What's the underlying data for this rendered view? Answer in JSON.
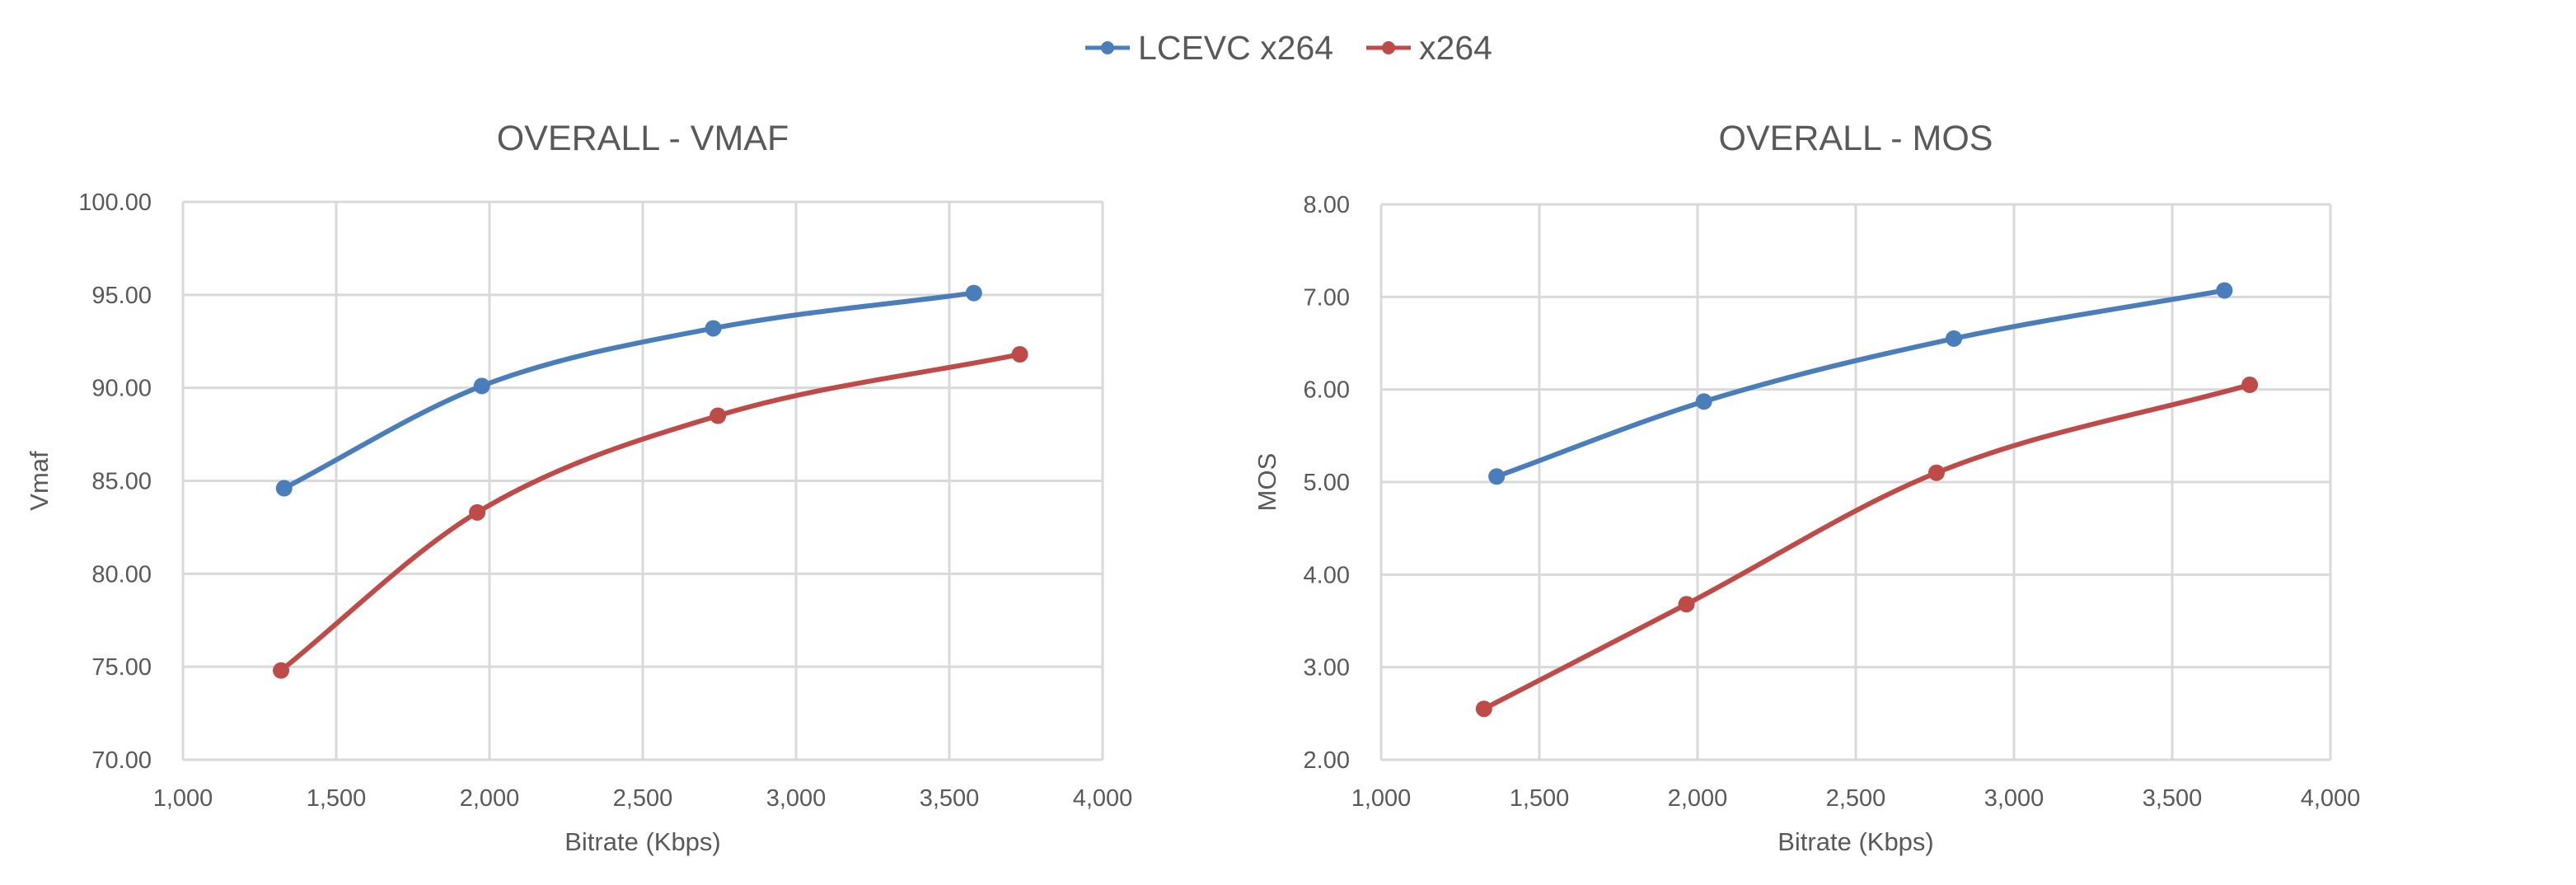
{
  "legend": [
    {
      "name": "LCEVC x264",
      "color": "#4a7ebb"
    },
    {
      "name": "x264",
      "color": "#be4b48"
    }
  ],
  "chart_data": [
    {
      "type": "line",
      "title": "OVERALL - VMAF",
      "xlabel": "Bitrate (Kbps)",
      "ylabel": "Vmaf",
      "xlim": [
        1000,
        4000
      ],
      "ylim": [
        70,
        100
      ],
      "xticks": [
        1000,
        1500,
        2000,
        2500,
        3000,
        3500,
        4000
      ],
      "xtick_labels": [
        "1,000",
        "1,500",
        "2,000",
        "2,500",
        "3,000",
        "3,500",
        "4,000"
      ],
      "yticks": [
        70,
        75,
        80,
        85,
        90,
        95,
        100
      ],
      "ytick_labels": [
        "70.00",
        "75.00",
        "80.00",
        "85.00",
        "90.00",
        "95.00",
        "100.00"
      ],
      "grid": true,
      "legend_position": "top",
      "series": [
        {
          "name": "LCEVC x264",
          "color": "#4a7ebb",
          "points": [
            [
              1330,
              84.6
            ],
            [
              1975,
              90.1
            ],
            [
              2730,
              93.2
            ],
            [
              3580,
              95.1
            ]
          ]
        },
        {
          "name": "x264",
          "color": "#be4b48",
          "points": [
            [
              1320,
              74.8
            ],
            [
              1960,
              83.3
            ],
            [
              2745,
              88.5
            ],
            [
              3730,
              91.8
            ]
          ]
        }
      ]
    },
    {
      "type": "line",
      "title": "OVERALL - MOS",
      "xlabel": "Bitrate (Kbps)",
      "ylabel": "MOS",
      "xlim": [
        1000,
        4000
      ],
      "ylim": [
        2,
        8
      ],
      "xticks": [
        1000,
        1500,
        2000,
        2500,
        3000,
        3500,
        4000
      ],
      "xtick_labels": [
        "1,000",
        "1,500",
        "2,000",
        "2,500",
        "3,000",
        "3,500",
        "4,000"
      ],
      "yticks": [
        2,
        3,
        4,
        5,
        6,
        7,
        8
      ],
      "ytick_labels": [
        "2.00",
        "3.00",
        "4.00",
        "5.00",
        "6.00",
        "7.00",
        "8.00"
      ],
      "grid": true,
      "legend_position": "top",
      "series": [
        {
          "name": "LCEVC x264",
          "color": "#4a7ebb",
          "points": [
            [
              1365,
              5.06
            ],
            [
              2020,
              5.87
            ],
            [
              2810,
              6.55
            ],
            [
              3665,
              7.07
            ]
          ]
        },
        {
          "name": "x264",
          "color": "#be4b48",
          "points": [
            [
              1325,
              2.55
            ],
            [
              1965,
              3.68
            ],
            [
              2755,
              5.1
            ],
            [
              3745,
              6.05
            ]
          ]
        }
      ]
    }
  ]
}
